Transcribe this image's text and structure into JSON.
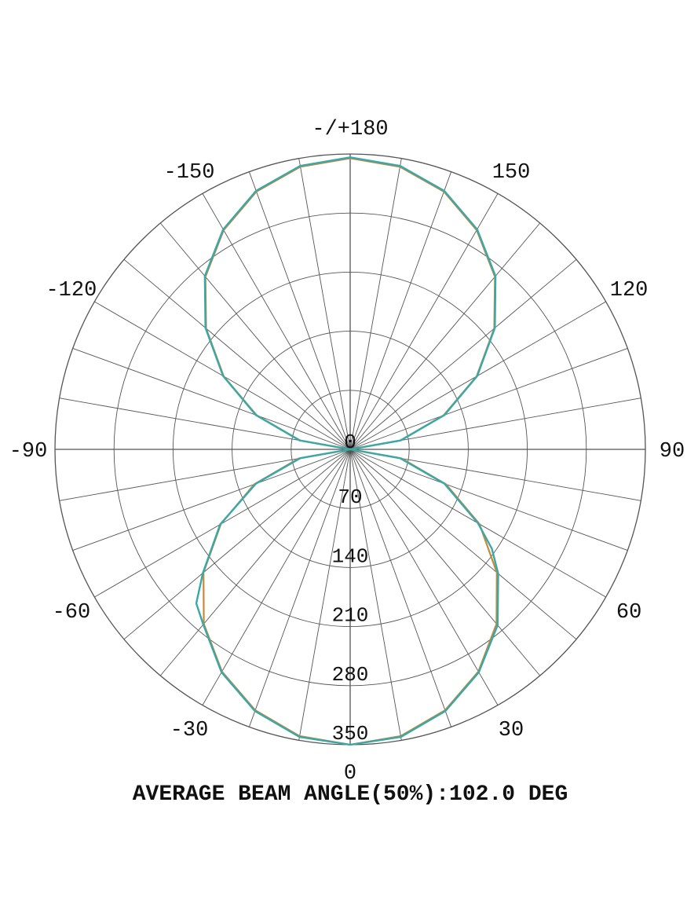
{
  "chart_data": {
    "type": "polar",
    "title": "",
    "footer": "AVERAGE BEAM ANGLE(50%):102.0 DEG",
    "angle_ticks": [
      {
        "value": 0,
        "text": "0"
      },
      {
        "value": 30,
        "text": "30"
      },
      {
        "value": 60,
        "text": "60"
      },
      {
        "value": 90,
        "text": "90"
      },
      {
        "value": 120,
        "text": "120"
      },
      {
        "value": 150,
        "text": "150"
      },
      {
        "value": 180,
        "text": "-/+180"
      },
      {
        "value": -150,
        "text": "-150"
      },
      {
        "value": -120,
        "text": "-120"
      },
      {
        "value": -90,
        "text": "-90"
      },
      {
        "value": -60,
        "text": "-60"
      },
      {
        "value": -30,
        "text": "-30"
      }
    ],
    "radial_ticks": [
      {
        "value": 0,
        "text": "0"
      },
      {
        "value": 70,
        "text": "70"
      },
      {
        "value": 140,
        "text": "140"
      },
      {
        "value": 210,
        "text": "210"
      },
      {
        "value": 280,
        "text": "280"
      },
      {
        "value": 350,
        "text": "350"
      }
    ],
    "rmax": 350,
    "radial_grid": [
      70,
      140,
      210,
      280,
      350
    ],
    "angular_grid_step_deg": 10,
    "grid": true,
    "colors": {
      "grid": "#555555",
      "series_a": "#c58a3a",
      "series_b": "#3aa7a8"
    },
    "series": [
      {
        "angles": [
          0,
          10,
          20,
          30,
          40,
          50,
          60,
          70,
          80,
          90,
          100,
          110,
          120,
          130,
          140,
          150,
          160,
          170,
          180,
          -170,
          -160,
          -150,
          -140,
          -130,
          -120,
          -110,
          -100,
          -90,
          -80,
          -70,
          -60,
          -50,
          -40,
          -30,
          -20,
          -10,
          0
        ],
        "values": [
          350,
          345,
          329,
          304,
          270,
          227,
          177,
          121,
          62,
          0,
          60,
          118,
          173,
          223,
          267,
          300,
          325,
          340,
          345,
          340,
          325,
          300,
          267,
          223,
          173,
          118,
          60,
          0,
          62,
          121,
          177,
          227,
          270,
          304,
          329,
          345,
          350
        ]
      },
      {
        "angles": [
          0,
          10,
          20,
          30,
          40,
          50,
          55,
          60,
          70,
          80,
          90,
          100,
          110,
          120,
          130,
          140,
          150,
          160,
          170,
          180,
          -170,
          -160,
          -150,
          -140,
          -130,
          -120,
          -110,
          -100,
          -90,
          -80,
          -70,
          -60,
          -50,
          -45,
          -40,
          -30,
          -20,
          -10,
          0
        ],
        "values": [
          350,
          346,
          330,
          305,
          272,
          229,
          205,
          175,
          119,
          60,
          0,
          61,
          119,
          174,
          224,
          268,
          301,
          326,
          341,
          346,
          341,
          326,
          301,
          268,
          224,
          174,
          119,
          61,
          0,
          60,
          119,
          178,
          228,
          258,
          271,
          305,
          330,
          346,
          350
        ]
      }
    ]
  }
}
